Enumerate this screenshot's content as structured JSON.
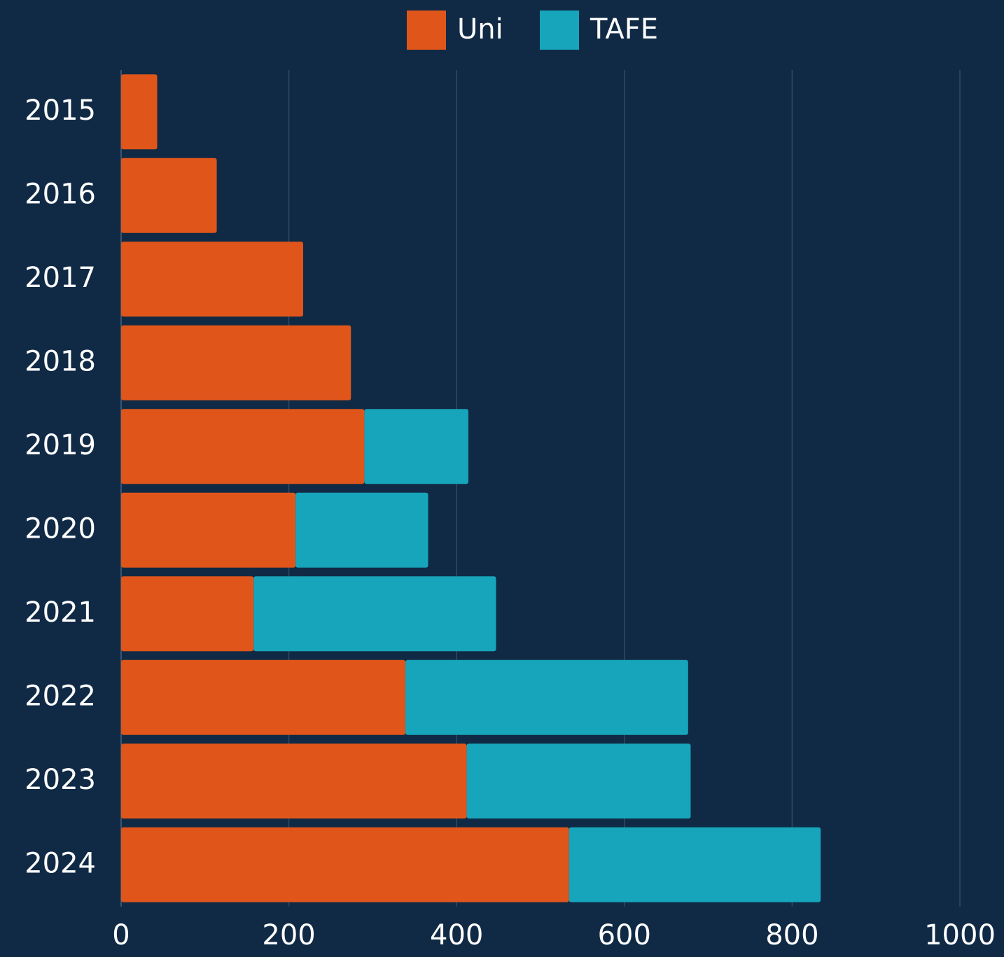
{
  "chart_data": {
    "type": "bar",
    "orientation": "horizontal",
    "stacked": true,
    "categories": [
      "2015",
      "2016",
      "2017",
      "2018",
      "2019",
      "2020",
      "2021",
      "2022",
      "2023",
      "2024"
    ],
    "series": [
      {
        "name": "Uni",
        "color": "#e0561a",
        "values": [
          43,
          114,
          217,
          274,
          290,
          208,
          158,
          339,
          412,
          534
        ]
      },
      {
        "name": "TAFE",
        "color": "#17a5bb",
        "values": [
          0,
          0,
          0,
          0,
          124,
          158,
          289,
          337,
          267,
          300
        ]
      }
    ],
    "xlim": [
      0,
      1000
    ],
    "xticks": [
      0,
      200,
      400,
      600,
      800,
      1000
    ],
    "grid": true,
    "legend": "top"
  }
}
